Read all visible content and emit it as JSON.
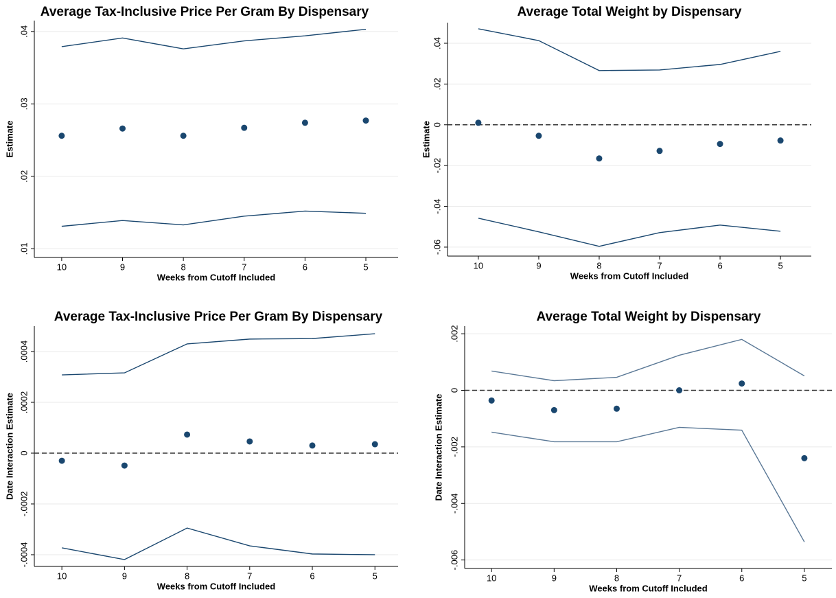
{
  "chart_data": [
    {
      "type": "line",
      "title": "Average Tax-Inclusive Price Per Gram By Dispensary",
      "xlabel": "Weeks from Cutoff Included",
      "ylabel": "Estimate",
      "x": [
        10,
        9,
        8,
        7,
        6,
        5
      ],
      "xlim": [
        10.45,
        4.47
      ],
      "xticks": [
        10,
        9,
        8,
        7,
        6,
        5
      ],
      "ylim": [
        0.0088,
        0.0415
      ],
      "yticks": [
        {
          "value": 0.01,
          "label": ".01"
        },
        {
          "value": 0.02,
          "label": ".02"
        },
        {
          "value": 0.03,
          "label": ".03"
        },
        {
          "value": 0.04,
          "label": ".04"
        }
      ],
      "grid": true,
      "series": [
        {
          "kind": "scatter",
          "color": "#1a476f",
          "values": [
            0.0256,
            0.0266,
            0.0256,
            0.0267,
            0.0274,
            0.0277
          ]
        },
        {
          "kind": "line",
          "color": "#1a476f",
          "values": [
            0.0379,
            0.0391,
            0.0376,
            0.0387,
            0.0394,
            0.0403
          ]
        },
        {
          "kind": "line",
          "color": "#1a476f",
          "values": [
            0.0131,
            0.0139,
            0.0133,
            0.0145,
            0.0152,
            0.0149
          ]
        }
      ]
    },
    {
      "type": "line",
      "title": "Average Total Weight by Dispensary",
      "xlabel": "Weeks from Cutoff Included",
      "ylabel": "Estimate",
      "x": [
        10,
        9,
        8,
        7,
        6,
        5
      ],
      "xlim": [
        10.51,
        4.49
      ],
      "xticks": [
        10,
        9,
        8,
        7,
        6,
        5
      ],
      "ylim": [
        -0.0644,
        0.0501
      ],
      "yticks": [
        {
          "value": -0.06,
          "label": "-.06"
        },
        {
          "value": -0.04,
          "label": "-.04"
        },
        {
          "value": -0.02,
          "label": "-.02"
        },
        0,
        {
          "value": 0.02,
          "label": ".02"
        },
        {
          "value": 0.04,
          "label": ".04"
        }
      ],
      "grid": true,
      "refline": 0,
      "series": [
        {
          "kind": "scatter",
          "color": "#1a476f",
          "values": [
            0.001,
            -0.0054,
            -0.0165,
            -0.0128,
            -0.0094,
            -0.0077
          ]
        },
        {
          "kind": "line",
          "color": "#1a476f",
          "values": [
            0.0471,
            0.0413,
            0.0266,
            0.0269,
            0.0296,
            0.036
          ]
        },
        {
          "kind": "line",
          "color": "#1a476f",
          "values": [
            -0.0458,
            -0.0525,
            -0.0596,
            -0.0529,
            -0.0492,
            -0.0522
          ]
        }
      ]
    },
    {
      "type": "line",
      "title": "Average Tax-Inclusive Price Per Gram By Dispensary",
      "xlabel": "Weeks from Cutoff Included",
      "ylabel": "Date Interaction Estimate",
      "x": [
        10,
        9,
        8,
        7,
        6,
        5
      ],
      "xlim": [
        10.44,
        4.63
      ],
      "xticks": [
        10,
        9,
        8,
        7,
        6,
        5
      ],
      "ylim": [
        -0.000446,
        0.0005
      ],
      "yticks": [
        {
          "value": -0.0004,
          "label": "-.0004"
        },
        {
          "value": -0.0002,
          "label": "-.0002"
        },
        0,
        {
          "value": 0.0002,
          "label": ".0002"
        },
        {
          "value": 0.0004,
          "label": ".0004"
        }
      ],
      "grid": true,
      "refline": 0,
      "series": [
        {
          "kind": "scatter",
          "color": "#1a476f",
          "values": [
            -3e-05,
            -4.9e-05,
            7.3e-05,
            4.6e-05,
            3e-05,
            3.5e-05
          ]
        },
        {
          "kind": "line",
          "color": "#1a476f",
          "values": [
            0.000308,
            0.000316,
            0.00043,
            0.000449,
            0.000451,
            0.00047
          ]
        },
        {
          "kind": "line",
          "color": "#1a476f",
          "values": [
            -0.000373,
            -0.000419,
            -0.000295,
            -0.000365,
            -0.000397,
            -0.0004
          ]
        }
      ]
    },
    {
      "type": "line",
      "title": "Average Total Weight by Dispensary",
      "xlabel": "Weeks from Cutoff Included",
      "ylabel": "Date Interaction Estimate",
      "x": [
        10,
        9,
        8,
        7,
        6,
        5
      ],
      "xlim": [
        10.43,
        4.56
      ],
      "xticks": [
        10,
        9,
        8,
        7,
        6,
        5
      ],
      "ylim": [
        -0.0063,
        0.00227
      ],
      "yticks": [
        {
          "value": -0.006,
          "label": "-.006"
        },
        {
          "value": -0.004,
          "label": "-.004"
        },
        {
          "value": -0.002,
          "label": "-.002"
        },
        0,
        {
          "value": 0.002,
          "label": ".002"
        }
      ],
      "grid": true,
      "refline": 0,
      "series": [
        {
          "kind": "scatter",
          "color": "#1a476f",
          "values": [
            -0.00036,
            -0.0007,
            -0.00065,
            0,
            0.00024,
            -0.0024
          ]
        },
        {
          "kind": "line",
          "color": "#5a7896",
          "values": [
            0.00068,
            0.00034,
            0.00046,
            0.00124,
            0.0018,
            0.00051
          ]
        },
        {
          "kind": "line",
          "color": "#5a7896",
          "values": [
            -0.00148,
            -0.00182,
            -0.00182,
            -0.00131,
            -0.00141,
            -0.00536
          ]
        }
      ]
    }
  ]
}
